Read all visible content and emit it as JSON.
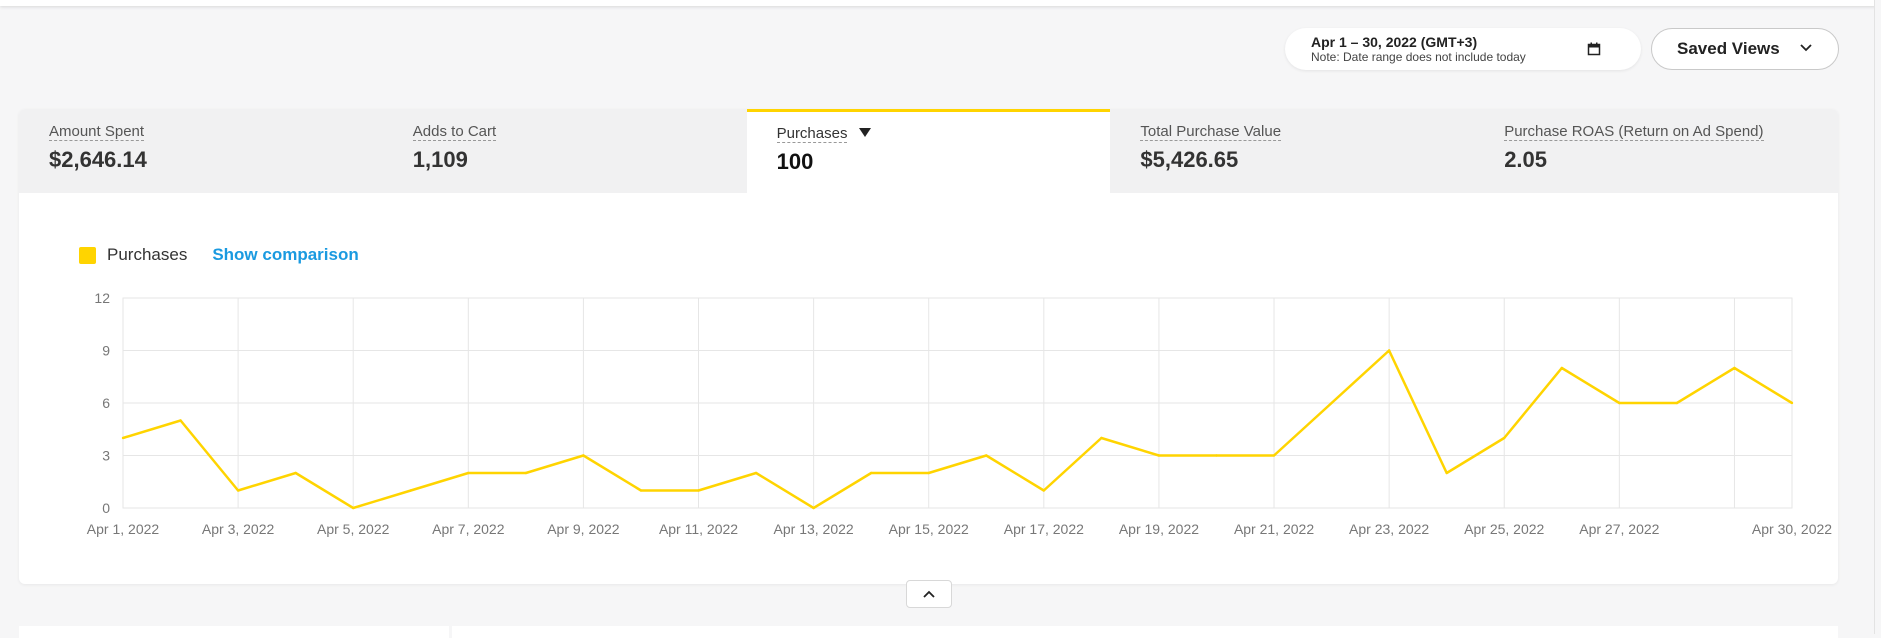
{
  "date_picker": {
    "range": "Apr 1 – 30, 2022 (GMT+3)",
    "note": "Note: Date range does not include today"
  },
  "saved_views": {
    "label": "Saved Views"
  },
  "metrics": [
    {
      "label": "Amount Spent",
      "value": "$2,646.14"
    },
    {
      "label": "Adds to Cart",
      "value": "1,109"
    },
    {
      "label": "Purchases",
      "value": "100",
      "active": true
    },
    {
      "label": "Total Purchase Value",
      "value": "$5,426.65"
    },
    {
      "label": "Purchase ROAS (Return on Ad Spend)",
      "value": "2.05"
    }
  ],
  "legend": {
    "series_name": "Purchases",
    "comparison_link": "Show comparison"
  },
  "colors": {
    "accent": "#ffd400",
    "link": "#1a9ae0"
  },
  "chart_data": {
    "type": "line",
    "series": [
      {
        "name": "Purchases",
        "values": [
          4,
          5,
          1,
          2,
          0,
          1,
          2,
          2,
          3,
          1,
          1,
          2,
          0,
          2,
          2,
          3,
          1,
          4,
          3,
          3,
          3,
          6,
          9,
          2,
          4,
          8,
          6,
          6,
          8,
          6
        ]
      }
    ],
    "x": [
      "Apr 1",
      "Apr 2",
      "Apr 3",
      "Apr 4",
      "Apr 5",
      "Apr 6",
      "Apr 7",
      "Apr 8",
      "Apr 9",
      "Apr 10",
      "Apr 11",
      "Apr 12",
      "Apr 13",
      "Apr 14",
      "Apr 15",
      "Apr 16",
      "Apr 17",
      "Apr 18",
      "Apr 19",
      "Apr 20",
      "Apr 21",
      "Apr 22",
      "Apr 23",
      "Apr 24",
      "Apr 25",
      "Apr 26",
      "Apr 27",
      "Apr 28",
      "Apr 29",
      "Apr 30"
    ],
    "x_tick_labels": [
      "Apr 1, 2022",
      "Apr 3, 2022",
      "Apr 5, 2022",
      "Apr 7, 2022",
      "Apr 9, 2022",
      "Apr 11, 2022",
      "Apr 13, 2022",
      "Apr 15, 2022",
      "Apr 17, 2022",
      "Apr 19, 2022",
      "Apr 21, 2022",
      "Apr 23, 2022",
      "Apr 25, 2022",
      "Apr 27, 2022",
      "Apr 30, 2022"
    ],
    "y_ticks": [
      0,
      3,
      6,
      9,
      12
    ],
    "ylim": [
      0,
      12
    ],
    "grid": true,
    "legend_position": "top-left",
    "title": "",
    "xlabel": "",
    "ylabel": ""
  },
  "collapse_icon": "chevron-up-icon"
}
